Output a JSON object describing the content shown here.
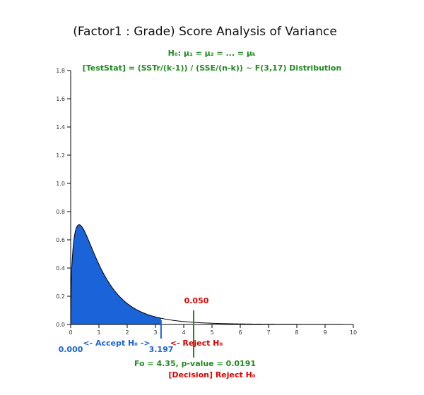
{
  "chart_data": {
    "type": "area",
    "title": "(Factor1 : Grade) Score Analysis of Variance",
    "hypothesis": "H₀: μ₁ = μ₂ = ... = μₖ",
    "statistic": "[TestStat] = (SSTr/(k-1)) / (SSE/(n-k)) ~ F(3,17) Distribution",
    "distribution": {
      "name": "F",
      "df1": 3,
      "df2": 17
    },
    "xlim": [
      0,
      10
    ],
    "ylim": [
      0,
      1.8
    ],
    "x_ticks": [
      "0",
      "1",
      "2",
      "3",
      "4",
      "5",
      "6",
      "7",
      "8",
      "9",
      "10"
    ],
    "y_ticks": [
      "0.0",
      "0.2",
      "0.4",
      "0.6",
      "0.8",
      "1.0",
      "1.2",
      "1.4",
      "1.6",
      "1.8"
    ],
    "acceptance_region": {
      "from": 0.0,
      "to": 3.197,
      "fill": "#1a63d8"
    },
    "alpha_label": "0.050",
    "lower_bound_label": "0.000",
    "critical_value_label": "3.197",
    "accept_label": "<- Accept H₀ ->",
    "reject_label": "<- Reject H₀",
    "observed": {
      "f": 4.35,
      "p": 0.0191
    },
    "observed_label": "Fo = 4.35, p-value = 0.0191",
    "decision_label": "[Decision] Reject H₀",
    "colors": {
      "accept": "#1a63d8",
      "reject": "#e00000",
      "stat": "#1f8a1f"
    }
  }
}
